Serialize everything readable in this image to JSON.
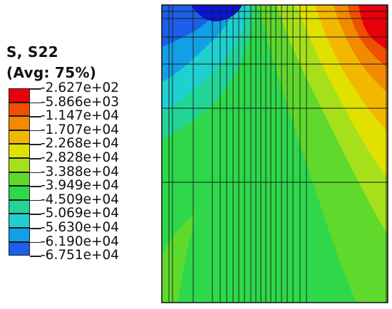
{
  "legend": {
    "variable": "S, S22",
    "averaging": "(Avg: 75%)",
    "entries": [
      {
        "label": "-2.627e+02",
        "color": "#e8000b"
      },
      {
        "label": "-5.866e+03",
        "color": "#f04f00"
      },
      {
        "label": "-1.147e+04",
        "color": "#f28a00"
      },
      {
        "label": "-1.707e+04",
        "color": "#f2b800"
      },
      {
        "label": "-2.268e+04",
        "color": "#e1e100"
      },
      {
        "label": "-2.828e+04",
        "color": "#a6e01a"
      },
      {
        "label": "-3.388e+04",
        "color": "#5fd92c"
      },
      {
        "label": "-3.949e+04",
        "color": "#2ed84a"
      },
      {
        "label": "-4.509e+04",
        "color": "#22d596"
      },
      {
        "label": "-5.069e+04",
        "color": "#1fd0d0"
      },
      {
        "label": "-5.630e+04",
        "color": "#139fe6"
      },
      {
        "label": "-6.190e+04",
        "color": "#1c5fe8"
      },
      {
        "label": "-6.751e+04",
        "color": "#0a14d8"
      }
    ]
  },
  "contour": {
    "fill_colors": {
      "deep_blue": "#0a14d8",
      "blue": "#1c5fe8",
      "sky": "#139fe6",
      "cyan": "#1fd0d0",
      "aqua": "#22d596",
      "green": "#2ed84a",
      "bright_green": "#5fd92c",
      "yellow_green": "#a6e01a",
      "yellow": "#e1e100",
      "gold": "#f2b800",
      "orange": "#f28a00",
      "dark_orange": "#f04f00",
      "red": "#e8000b"
    },
    "mesh_color": "#1a1a1a"
  }
}
